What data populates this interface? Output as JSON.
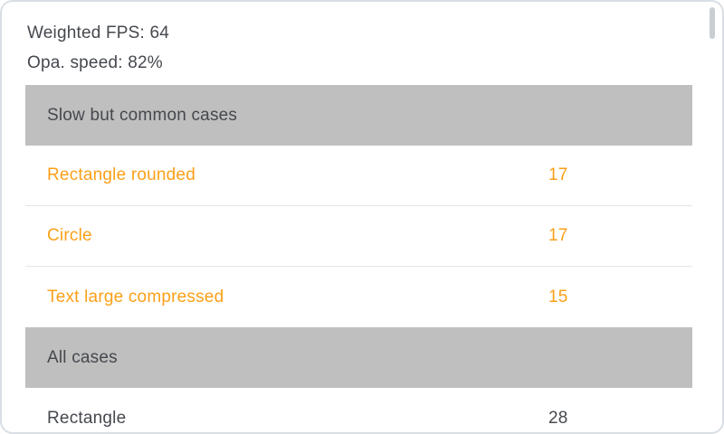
{
  "summary": {
    "weighted_fps": "Weighted FPS: 64",
    "opa_speed": "Opa. speed: 82%"
  },
  "sections": [
    {
      "header": "Slow but common cases",
      "rows": [
        {
          "name": "Rectangle rounded",
          "value": "17",
          "highlighted": true
        },
        {
          "name": "Circle",
          "value": "17",
          "highlighted": true
        },
        {
          "name": "Text large compressed",
          "value": "15",
          "highlighted": true
        }
      ]
    },
    {
      "header": "All cases",
      "rows": [
        {
          "name": "Rectangle",
          "value": "28",
          "highlighted": false
        }
      ]
    }
  ],
  "colors": {
    "accent_orange": "#fba019",
    "text_dark": "#45484e",
    "section_header_bg": "#bfbfbf",
    "divider": "#e2e7eb",
    "card_border": "#d9dfe5",
    "scrollbar": "#c9ced3",
    "background": "#ffffff"
  }
}
